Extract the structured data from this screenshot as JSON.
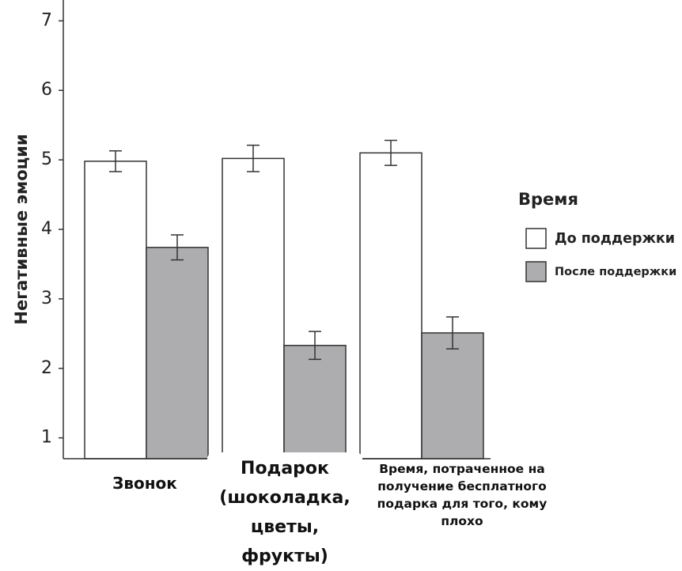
{
  "chart_data": {
    "type": "bar",
    "y_label": "Негативные эмоции",
    "categories": [
      "Звонок",
      "Подарок (шоколадка, цветы, фрукты)",
      "Время, потраченное на получение бесплатного подарка для того, кому плохо"
    ],
    "series": [
      {
        "name": "До поддержки",
        "color": "#ffffff",
        "values": [
          4.98,
          5.02,
          5.1
        ],
        "errors": [
          0.15,
          0.19,
          0.18
        ]
      },
      {
        "name": "После поддержки",
        "color": "#adacaf",
        "values": [
          3.74,
          2.33,
          2.51
        ],
        "errors": [
          0.18,
          0.2,
          0.23
        ]
      }
    ],
    "legend_title": "Время",
    "ylim": [
      0.7,
      7.3
    ],
    "yticks": [
      1,
      2,
      3,
      4,
      5,
      6,
      7
    ],
    "grid": false
  }
}
